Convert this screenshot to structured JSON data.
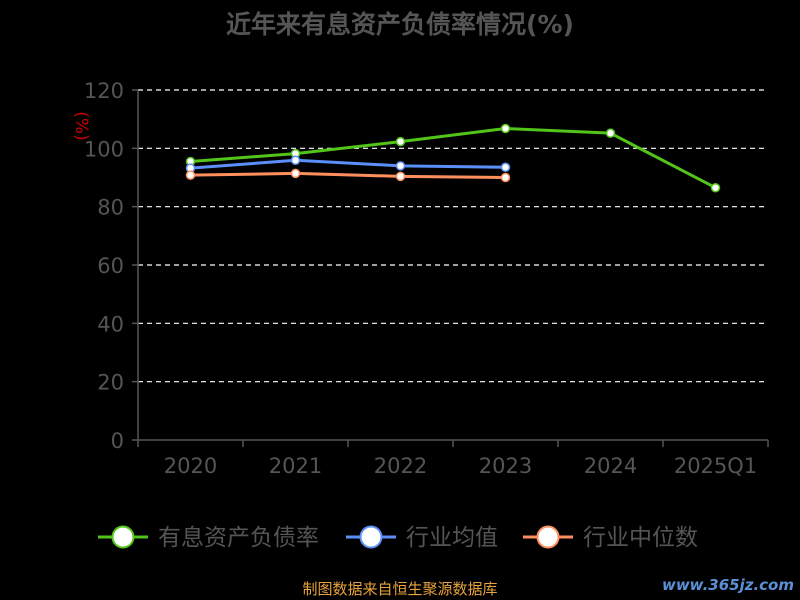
{
  "chart_data": {
    "type": "line",
    "title": "近年来有息资产负债率情况(%)",
    "ylabel": "(%)",
    "xlabel": "",
    "categories": [
      "2020",
      "2021",
      "2022",
      "2023",
      "2024",
      "2025Q1"
    ],
    "ylim": [
      0,
      120
    ],
    "yticks": [
      0,
      20,
      40,
      60,
      80,
      100,
      120
    ],
    "grid": true,
    "legend_position": "bottom",
    "series": [
      {
        "name": "有息资产负债率",
        "color": "#52c41a",
        "values": [
          95.5,
          98.2,
          102.3,
          106.8,
          105.2,
          86.5
        ]
      },
      {
        "name": "行业均值",
        "color": "#5b8ff9",
        "values": [
          93.2,
          95.9,
          94.0,
          93.5,
          null,
          null
        ]
      },
      {
        "name": "行业中位数",
        "color": "#ff8f5c",
        "values": [
          90.8,
          91.4,
          90.4,
          90.0,
          null,
          null
        ]
      }
    ]
  },
  "footer": {
    "source": "制图数据来自恒生聚源数据库",
    "source_color": "#e8a33d",
    "watermark": "www.365jz.com",
    "watermark_color": "#5b8fd6"
  },
  "colors": {
    "axis": "#555555",
    "grid": "#ffffff",
    "ylabel": "#cc0000"
  }
}
